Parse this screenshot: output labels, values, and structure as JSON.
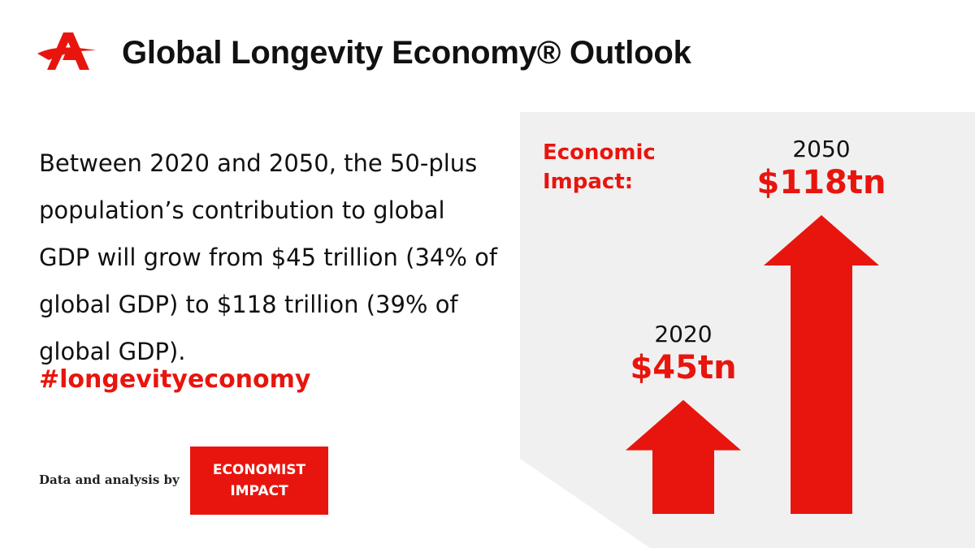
{
  "header": {
    "title": "Global Longevity Economy® Outlook",
    "logo_name": "AARP logo"
  },
  "main": {
    "body_text": "Between 2020 and 2050, the 50-plus population’s contribution to global GDP will grow from $45 trillion (34% of global GDP) to $118 trillion (39% of global GDP).",
    "hashtag": "#longevityeconomy"
  },
  "footer": {
    "credit": "Data and analysis by",
    "badge_line1": "ECONOMIST",
    "badge_line2": "IMPACT"
  },
  "chart_data": {
    "type": "bar",
    "title": "Economic Impact:",
    "title_line1": "Economic",
    "title_line2": "Impact:",
    "categories": [
      "2020",
      "2050"
    ],
    "values": [
      45,
      118
    ],
    "units": "trillion USD",
    "data_labels": [
      "$45tn",
      "$118tn"
    ],
    "ylim": [
      0,
      118
    ]
  },
  "colors": {
    "accent": "#e8150e",
    "panel": "#f0f0f0",
    "text": "#111111"
  }
}
